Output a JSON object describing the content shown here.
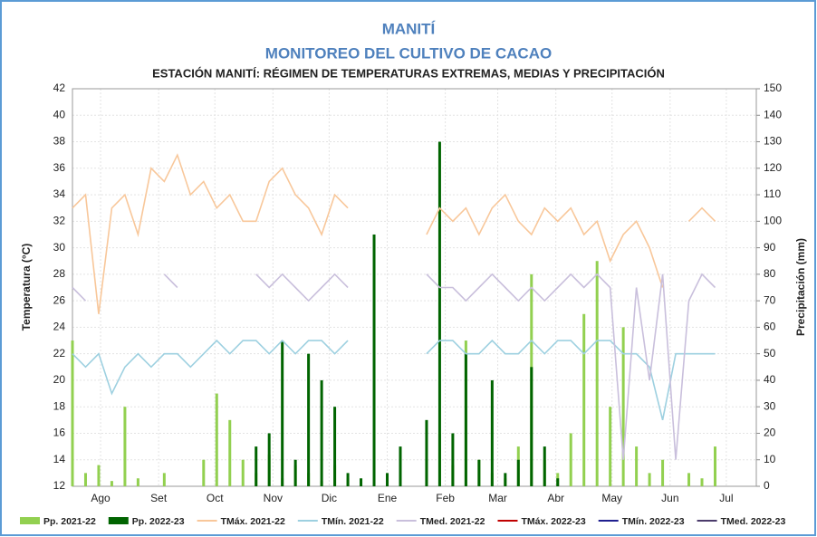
{
  "chart_data": {
    "type": "combo",
    "title": "MANITÍ",
    "subtitle": "MONITOREO DEL CULTIVO DE CACAO",
    "chart_title": "ESTACIÓN MANITÍ: RÉGIMEN DE TEMPERATURAS EXTREMAS, MEDIAS Y PRECIPITACIÓN",
    "y_label": "Temperatura (°C)",
    "y2_label": "Precipitación (mm)",
    "xlim": [
      0,
      365
    ],
    "xticks": [
      {
        "value": 15,
        "label": "Ago"
      },
      {
        "value": 46,
        "label": "Set"
      },
      {
        "value": 76,
        "label": "Oct"
      },
      {
        "value": 107,
        "label": "Nov"
      },
      {
        "value": 137,
        "label": "Dic"
      },
      {
        "value": 168,
        "label": "Ene"
      },
      {
        "value": 199,
        "label": "Feb"
      },
      {
        "value": 227,
        "label": "Mar"
      },
      {
        "value": 258,
        "label": "Abr"
      },
      {
        "value": 288,
        "label": "May"
      },
      {
        "value": 319,
        "label": "Jun"
      },
      {
        "value": 349,
        "label": "Jul"
      }
    ],
    "ylim": [
      12,
      42
    ],
    "yticks": [
      12,
      14,
      16,
      18,
      20,
      22,
      24,
      26,
      28,
      30,
      32,
      34,
      36,
      38,
      40,
      42
    ],
    "y2lim": [
      0,
      150
    ],
    "y2ticks": [
      0,
      10,
      20,
      30,
      40,
      50,
      60,
      70,
      80,
      90,
      100,
      110,
      120,
      130,
      140,
      150
    ],
    "x": [
      0,
      7,
      14,
      21,
      28,
      35,
      42,
      49,
      56,
      63,
      70,
      77,
      84,
      91,
      98,
      105,
      112,
      119,
      126,
      133,
      140,
      147,
      154,
      161,
      168,
      175,
      182,
      189,
      196,
      203,
      210,
      217,
      224,
      231,
      238,
      245,
      252,
      259,
      266,
      273,
      280,
      287,
      294,
      301,
      308,
      315,
      322,
      329,
      336,
      343,
      350,
      357,
      364
    ],
    "series": [
      {
        "name": "Pp. 2021-22",
        "kind": "bar",
        "axis": "y2",
        "color": "#92d050",
        "values": [
          55,
          5,
          8,
          2,
          30,
          3,
          0,
          5,
          0,
          0,
          10,
          35,
          25,
          10,
          5,
          12,
          3,
          8,
          5,
          2,
          8,
          3,
          0,
          0,
          0,
          0,
          0,
          10,
          20,
          8,
          55,
          10,
          5,
          3,
          15,
          80,
          10,
          5,
          20,
          65,
          85,
          30,
          60,
          15,
          5,
          10,
          0,
          5,
          3,
          15,
          0,
          0,
          0
        ]
      },
      {
        "name": "Pp. 2022-23",
        "kind": "bar",
        "axis": "y2",
        "color": "#006400",
        "values": [
          0,
          0,
          0,
          0,
          0,
          0,
          0,
          0,
          0,
          0,
          0,
          0,
          0,
          0,
          15,
          20,
          55,
          10,
          50,
          40,
          30,
          5,
          3,
          95,
          5,
          15,
          0,
          25,
          130,
          20,
          50,
          10,
          40,
          5,
          10,
          45,
          15,
          3,
          0,
          0,
          0,
          0,
          0,
          0,
          0,
          0,
          0,
          0,
          0,
          0,
          0,
          0,
          0
        ]
      },
      {
        "name": "TMáx. 2021-22",
        "kind": "line",
        "color": "#f8c79a",
        "values": [
          33,
          34,
          25,
          33,
          34,
          31,
          36,
          35,
          37,
          34,
          35,
          33,
          34,
          32,
          32,
          35,
          36,
          34,
          33,
          31,
          34,
          33,
          null,
          null,
          null,
          null,
          null,
          31,
          33,
          32,
          33,
          31,
          33,
          34,
          32,
          31,
          33,
          32,
          33,
          31,
          32,
          29,
          31,
          32,
          30,
          27,
          null,
          32,
          33,
          32,
          null,
          null,
          null
        ]
      },
      {
        "name": "TMín. 2021-22",
        "kind": "line",
        "color": "#9dd0e0",
        "values": [
          22,
          21,
          22,
          19,
          21,
          22,
          21,
          22,
          22,
          21,
          22,
          23,
          22,
          23,
          23,
          22,
          23,
          22,
          23,
          23,
          22,
          23,
          null,
          null,
          null,
          null,
          null,
          22,
          23,
          23,
          22,
          22,
          23,
          22,
          22,
          23,
          22,
          23,
          23,
          22,
          23,
          23,
          22,
          22,
          21,
          17,
          22,
          22,
          22,
          22,
          null,
          null,
          null
        ]
      },
      {
        "name": "TMed. 2021-22",
        "kind": "line",
        "color": "#c9bfdc",
        "values": [
          27,
          26,
          null,
          null,
          null,
          null,
          null,
          28,
          27,
          null,
          null,
          null,
          null,
          null,
          28,
          27,
          28,
          27,
          26,
          27,
          28,
          27,
          null,
          null,
          null,
          null,
          null,
          28,
          27,
          27,
          26,
          27,
          28,
          27,
          26,
          27,
          26,
          27,
          28,
          27,
          28,
          27,
          14,
          27,
          20,
          28,
          14,
          26,
          28,
          27,
          null,
          null,
          null
        ]
      },
      {
        "name": "TMáx. 2022-23",
        "kind": "line",
        "color": "#c00000",
        "values": [
          null,
          null,
          null,
          null,
          null,
          null,
          null,
          null,
          null,
          null,
          null,
          null,
          null,
          null,
          null,
          null,
          null,
          null,
          null,
          null,
          null,
          null,
          null,
          null,
          null,
          null,
          null,
          null,
          null,
          null,
          null,
          null,
          null,
          null,
          null,
          null,
          null,
          null,
          null,
          null,
          null,
          null,
          null,
          null,
          null,
          null,
          null,
          null,
          null,
          null,
          null,
          null,
          null
        ]
      },
      {
        "name": "TMín. 2022-23",
        "kind": "line",
        "color": "#1f1f8f",
        "values": [
          null,
          null,
          null,
          null,
          null,
          null,
          null,
          null,
          null,
          null,
          null,
          null,
          null,
          null,
          null,
          null,
          null,
          null,
          null,
          null,
          null,
          null,
          null,
          null,
          null,
          null,
          null,
          null,
          null,
          null,
          null,
          null,
          null,
          null,
          null,
          null,
          null,
          null,
          null,
          null,
          null,
          null,
          null,
          null,
          null,
          null,
          null,
          null,
          null,
          null,
          null,
          null,
          null
        ]
      },
      {
        "name": "TMed. 2022-23",
        "kind": "line",
        "color": "#4b3b6b",
        "values": [
          null,
          null,
          null,
          null,
          null,
          null,
          null,
          null,
          null,
          null,
          null,
          null,
          null,
          null,
          null,
          null,
          null,
          null,
          null,
          null,
          null,
          null,
          null,
          null,
          null,
          null,
          null,
          null,
          null,
          null,
          null,
          null,
          null,
          null,
          null,
          null,
          null,
          null,
          null,
          null,
          null,
          null,
          null,
          null,
          null,
          null,
          null,
          null,
          null,
          null,
          null,
          null,
          null
        ]
      }
    ]
  }
}
